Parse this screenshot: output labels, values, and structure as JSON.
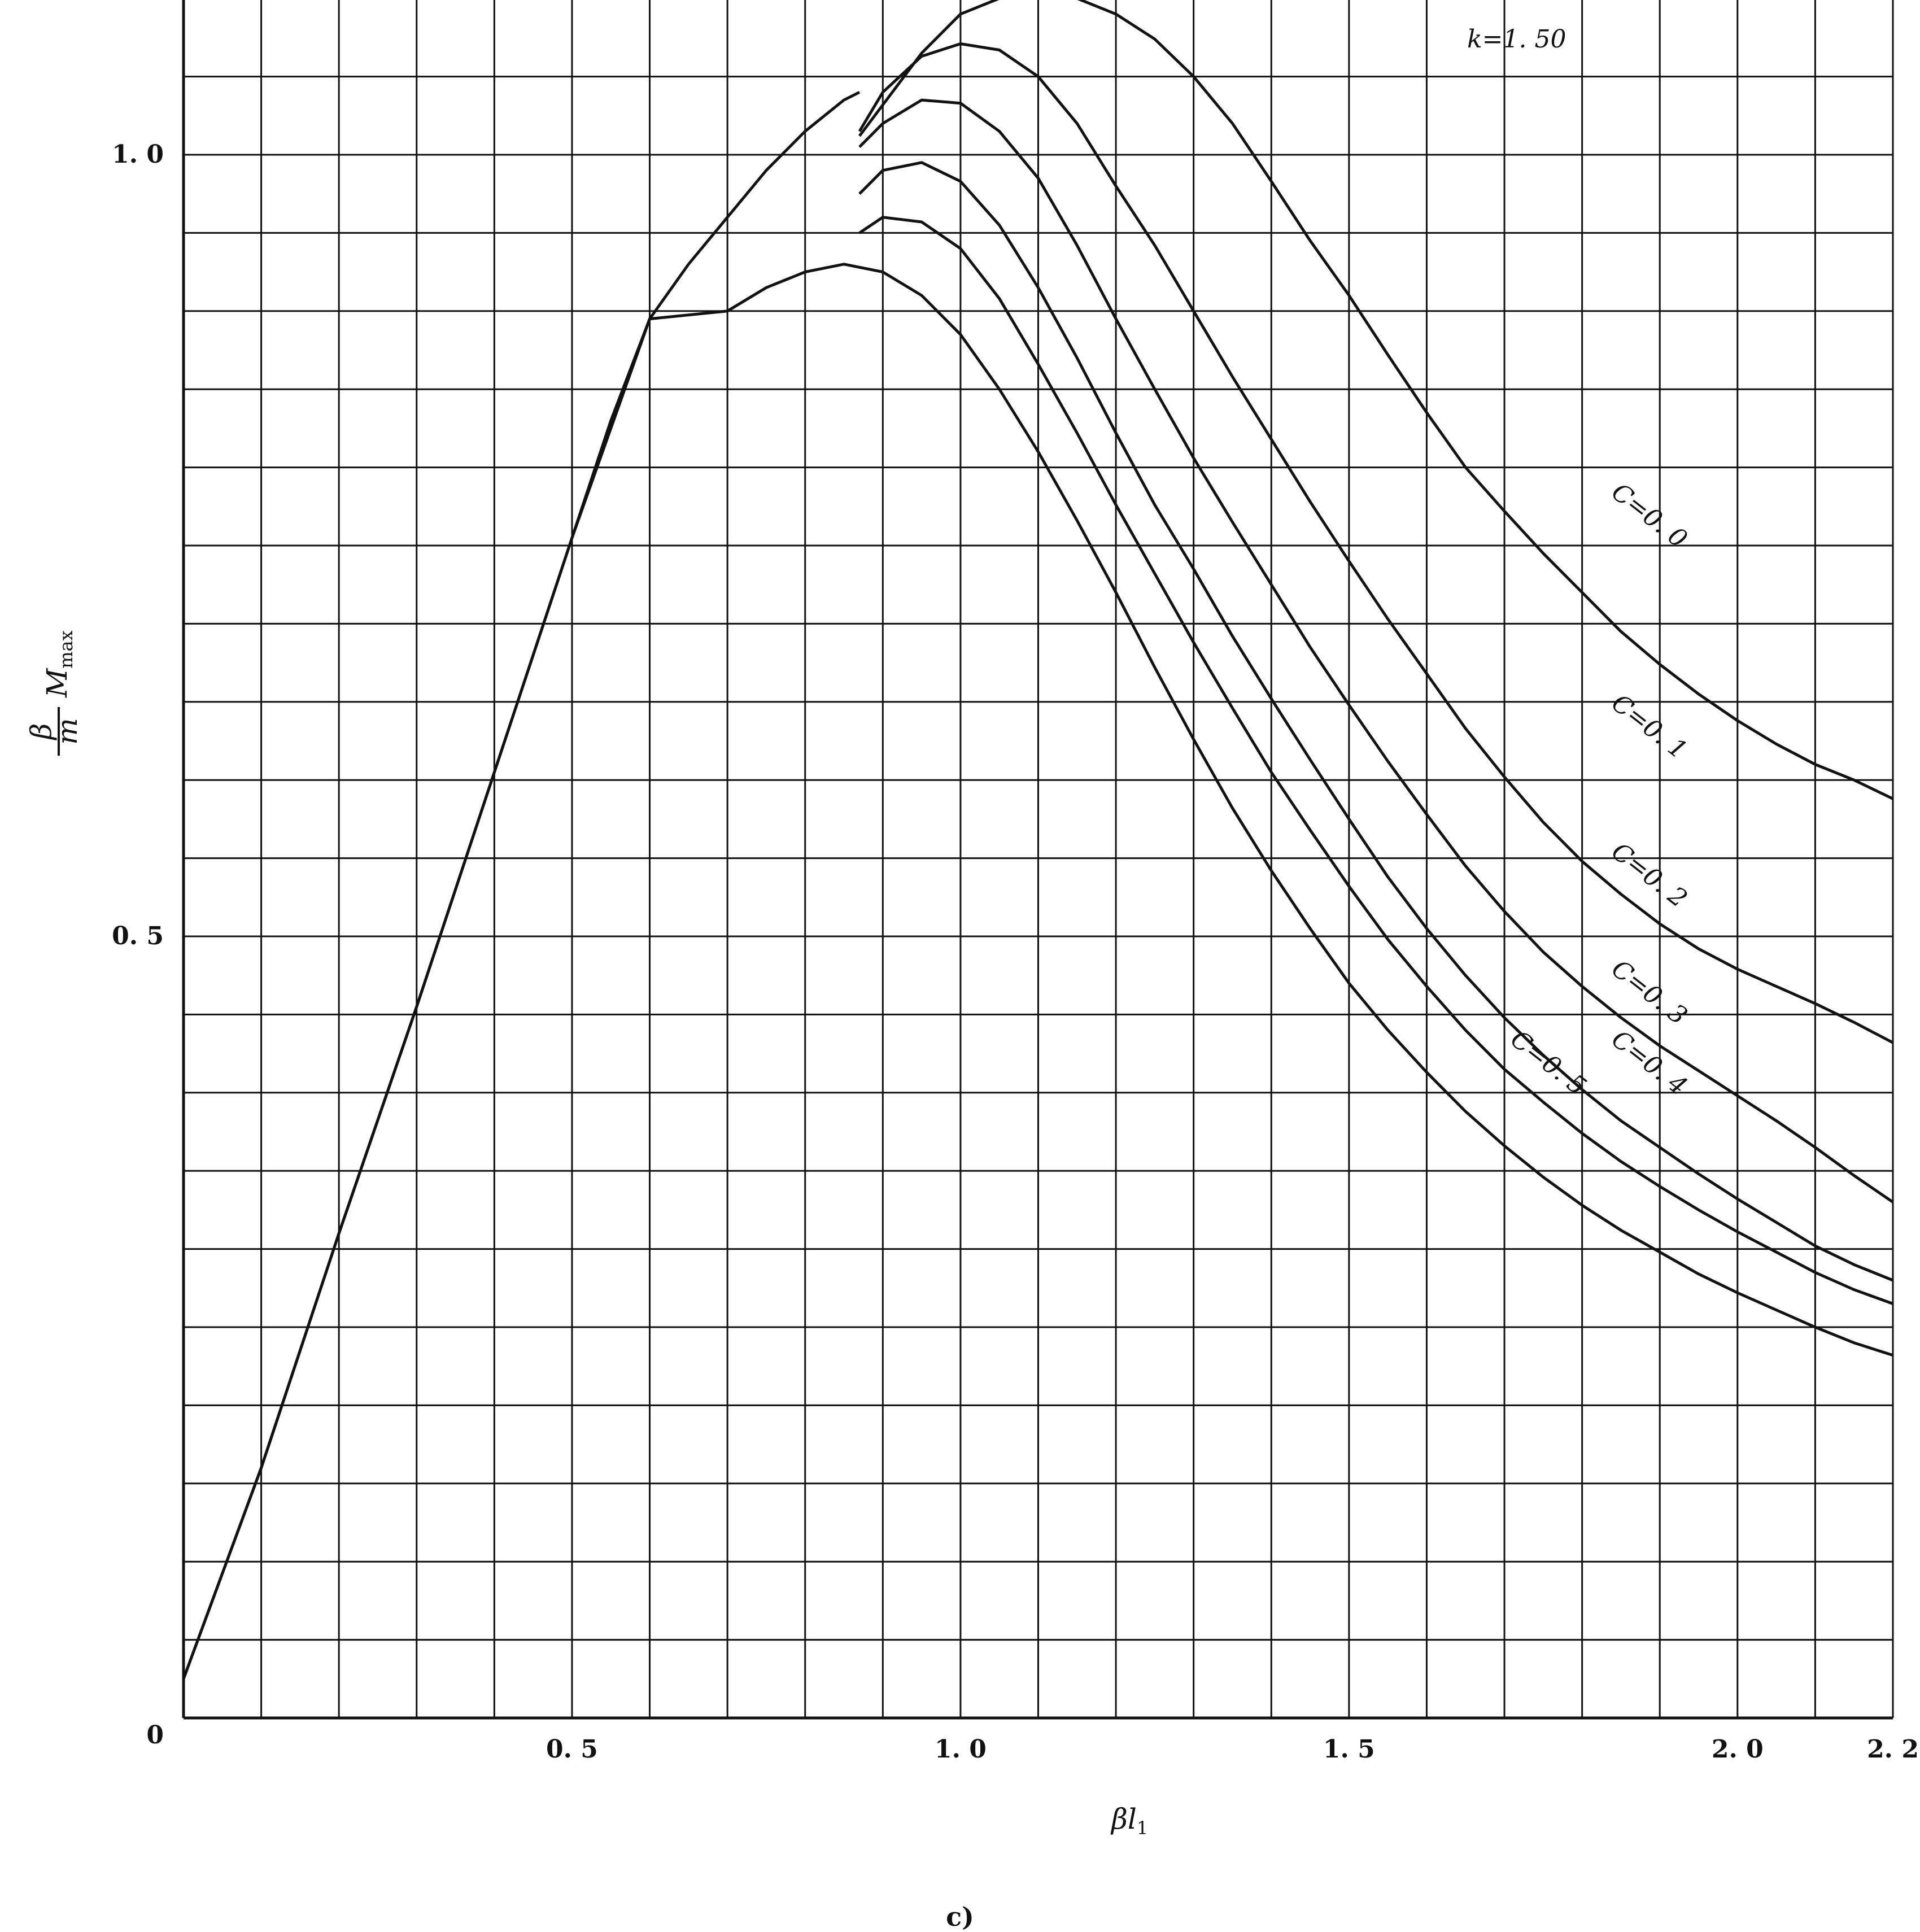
{
  "chart_data": {
    "type": "line",
    "title": "",
    "xlabel": "βl₁",
    "ylabel": "β/m M_max",
    "ylabel_numerator": "β",
    "ylabel_denominator": "m",
    "ylabel_symbol": "M",
    "ylabel_subscript": "max",
    "xlabel_symbol": "βl",
    "xlabel_subscript": "1",
    "xlim": [
      0,
      2.2
    ],
    "ylim": [
      0,
      1.1
    ],
    "xticks": [
      0.5,
      1.0,
      1.5,
      2.0,
      2.2
    ],
    "xtick_labels": [
      "0. 5",
      "1. 0",
      "1. 5",
      "2. 0",
      "2. 2"
    ],
    "yticks": [
      0,
      0.5,
      1.0
    ],
    "ytick_labels": [
      "0",
      "0. 5",
      "1. 0"
    ],
    "grid": true,
    "annotation": "k=1. 50",
    "caption": "c)",
    "series": [
      {
        "name": "C=0. 0",
        "label_at": [
          1.88,
          0.765
        ],
        "x": [
          0.87,
          0.95,
          1.0,
          1.05,
          1.1,
          1.15,
          1.2,
          1.25,
          1.3,
          1.35,
          1.4,
          1.45,
          1.5,
          1.55,
          1.6,
          1.65,
          1.7,
          1.75,
          1.8,
          1.85,
          1.9,
          1.95,
          2.0,
          2.05,
          2.1,
          2.15,
          2.2
        ],
        "y": [
          1.012,
          1.065,
          1.09,
          1.1,
          1.104,
          1.1,
          1.09,
          1.074,
          1.05,
          1.02,
          0.983,
          0.945,
          0.91,
          0.872,
          0.835,
          0.8,
          0.772,
          0.745,
          0.72,
          0.695,
          0.674,
          0.655,
          0.638,
          0.623,
          0.61,
          0.6,
          0.588
        ]
      },
      {
        "name": "C=0. 1",
        "label_at": [
          1.88,
          0.63
        ],
        "x": [
          0.87,
          0.9,
          0.95,
          1.0,
          1.05,
          1.1,
          1.15,
          1.2,
          1.25,
          1.3,
          1.35,
          1.4,
          1.45,
          1.5,
          1.55,
          1.6,
          1.65,
          1.7,
          1.75,
          1.8,
          1.85,
          1.9,
          1.95,
          2.0,
          2.05,
          2.1,
          2.15,
          2.2
        ],
        "y": [
          1.015,
          1.04,
          1.063,
          1.071,
          1.067,
          1.05,
          1.02,
          0.98,
          0.942,
          0.9,
          0.858,
          0.818,
          0.778,
          0.74,
          0.703,
          0.668,
          0.633,
          0.602,
          0.573,
          0.548,
          0.527,
          0.508,
          0.492,
          0.479,
          0.468,
          0.457,
          0.445,
          0.432
        ]
      },
      {
        "name": "C=0. 2",
        "label_at": [
          1.88,
          0.535
        ],
        "x": [
          0.87,
          0.9,
          0.95,
          1.0,
          1.05,
          1.1,
          1.15,
          1.2,
          1.25,
          1.3,
          1.35,
          1.4,
          1.45,
          1.5,
          1.55,
          1.6,
          1.65,
          1.7,
          1.75,
          1.8,
          1.85,
          1.9,
          1.95,
          2.0,
          2.05,
          2.1,
          2.15,
          2.2
        ],
        "y": [
          1.005,
          1.02,
          1.035,
          1.033,
          1.015,
          0.985,
          0.942,
          0.895,
          0.85,
          0.806,
          0.765,
          0.725,
          0.685,
          0.648,
          0.612,
          0.578,
          0.545,
          0.516,
          0.49,
          0.468,
          0.448,
          0.43,
          0.414,
          0.398,
          0.382,
          0.365,
          0.347,
          0.33
        ]
      },
      {
        "name": "C=0. 3",
        "label_at": [
          1.88,
          0.46
        ],
        "x": [
          0.87,
          0.9,
          0.95,
          1.0,
          1.05,
          1.1,
          1.15,
          1.2,
          1.25,
          1.3,
          1.35,
          1.4,
          1.45,
          1.5,
          1.55,
          1.6,
          1.65,
          1.7,
          1.75,
          1.8,
          1.85,
          1.9,
          1.95,
          2.0,
          2.05,
          2.1,
          2.15,
          2.2
        ],
        "y": [
          0.975,
          0.99,
          0.995,
          0.983,
          0.955,
          0.915,
          0.87,
          0.822,
          0.776,
          0.735,
          0.692,
          0.652,
          0.613,
          0.575,
          0.538,
          0.505,
          0.475,
          0.448,
          0.424,
          0.402,
          0.382,
          0.365,
          0.348,
          0.332,
          0.317,
          0.302,
          0.29,
          0.28
        ]
      },
      {
        "name": "C=0. 4",
        "label_at": [
          1.88,
          0.415
        ],
        "x": [
          0.87,
          0.9,
          0.95,
          1.0,
          1.05,
          1.1,
          1.15,
          1.2,
          1.25,
          1.3,
          1.35,
          1.4,
          1.45,
          1.5,
          1.55,
          1.6,
          1.65,
          1.7,
          1.75,
          1.8,
          1.85,
          1.9,
          1.95,
          2.0,
          2.05,
          2.1,
          2.15,
          2.2
        ],
        "y": [
          0.95,
          0.96,
          0.957,
          0.94,
          0.908,
          0.866,
          0.822,
          0.776,
          0.732,
          0.688,
          0.646,
          0.605,
          0.568,
          0.532,
          0.498,
          0.468,
          0.44,
          0.415,
          0.394,
          0.374,
          0.356,
          0.34,
          0.325,
          0.311,
          0.298,
          0.285,
          0.274,
          0.265
        ]
      },
      {
        "name": "C=0. 5",
        "label_at": [
          1.75,
          0.415
        ],
        "x": [
          0.0,
          0.1,
          0.2,
          0.3,
          0.4,
          0.5,
          0.6,
          0.7,
          0.75,
          0.8,
          0.85,
          0.9,
          0.95,
          1.0,
          1.05,
          1.1,
          1.15,
          1.2,
          1.25,
          1.3,
          1.35,
          1.4,
          1.45,
          1.5,
          1.55,
          1.6,
          1.65,
          1.7,
          1.75,
          1.8,
          1.85,
          1.9,
          1.95,
          2.0,
          2.05,
          2.1,
          2.15,
          2.2
        ],
        "y": [
          0.025,
          0.16,
          0.31,
          0.455,
          0.605,
          0.755,
          0.895,
          0.9,
          0.915,
          0.925,
          0.93,
          0.925,
          0.91,
          0.885,
          0.85,
          0.81,
          0.766,
          0.72,
          0.672,
          0.626,
          0.582,
          0.542,
          0.505,
          0.47,
          0.44,
          0.413,
          0.388,
          0.366,
          0.346,
          0.328,
          0.312,
          0.298,
          0.284,
          0.272,
          0.261,
          0.25,
          0.24,
          0.232
        ]
      },
      {
        "name": "",
        "label_at": null,
        "x": [
          0.0,
          0.1,
          0.2,
          0.3,
          0.4,
          0.5,
          0.55,
          0.6,
          0.65,
          0.7,
          0.75,
          0.8,
          0.85,
          0.87
        ],
        "y": [
          0.025,
          0.16,
          0.31,
          0.455,
          0.605,
          0.755,
          0.83,
          0.895,
          0.93,
          0.96,
          0.99,
          1.015,
          1.035,
          1.04
        ]
      }
    ]
  }
}
